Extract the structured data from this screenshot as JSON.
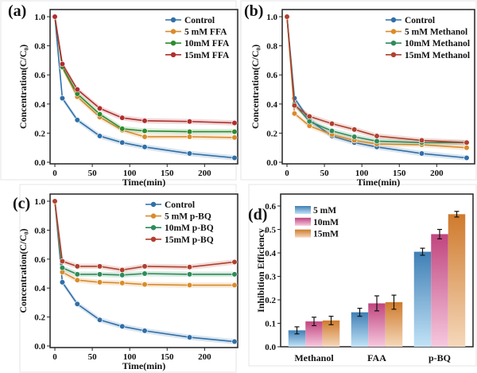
{
  "chart_data": [
    {
      "panel_label": "(a)",
      "type": "line",
      "xlabel": "Time(min)",
      "ylabel": "Concentration(C/C₀)",
      "xlim": [
        0,
        240
      ],
      "ylim": [
        0,
        1.0
      ],
      "xticks": [
        0,
        50,
        100,
        150,
        200
      ],
      "yticks": [
        0.0,
        0.2,
        0.4,
        0.6,
        0.8,
        1.0
      ],
      "legend_position": "top-right",
      "x": [
        0,
        10,
        30,
        60,
        90,
        120,
        180,
        240
      ],
      "series": [
        {
          "name": "Control",
          "color": "#2f6fa8",
          "values": [
            1.0,
            0.44,
            0.29,
            0.18,
            0.135,
            0.105,
            0.06,
            0.03
          ]
        },
        {
          "name": "5  mM FFA",
          "color": "#d98b2b",
          "values": [
            1.0,
            0.65,
            0.45,
            0.31,
            0.22,
            0.175,
            0.175,
            0.17
          ]
        },
        {
          "name": "10mM FFA",
          "color": "#2e8b2e",
          "values": [
            1.0,
            0.655,
            0.47,
            0.33,
            0.23,
            0.215,
            0.21,
            0.21
          ]
        },
        {
          "name": "15mM FFA",
          "color": "#b02e2e",
          "values": [
            1.0,
            0.675,
            0.5,
            0.37,
            0.305,
            0.285,
            0.28,
            0.27
          ]
        }
      ]
    },
    {
      "panel_label": "(b)",
      "type": "line",
      "xlabel": "Time(min)",
      "ylabel": "Concentration(C/C₀)",
      "xlim": [
        0,
        240
      ],
      "ylim": [
        0,
        1.0
      ],
      "xticks": [
        0,
        50,
        100,
        150,
        200
      ],
      "yticks": [
        0.0,
        0.2,
        0.4,
        0.6,
        0.8,
        1.0
      ],
      "legend_position": "top-right",
      "x": [
        0,
        10,
        30,
        60,
        90,
        120,
        180,
        240
      ],
      "series": [
        {
          "name": "Control",
          "color": "#2f6fa8",
          "values": [
            1.0,
            0.44,
            0.29,
            0.18,
            0.135,
            0.105,
            0.06,
            0.03
          ]
        },
        {
          "name": "5  mM Methanol",
          "color": "#d98b2b",
          "values": [
            1.0,
            0.335,
            0.25,
            0.19,
            0.15,
            0.125,
            0.12,
            0.1
          ]
        },
        {
          "name": "10mM Methanol",
          "color": "#2e8b5a",
          "values": [
            1.0,
            0.4,
            0.28,
            0.215,
            0.175,
            0.145,
            0.135,
            0.135
          ]
        },
        {
          "name": "15mM Methanol",
          "color": "#b0402e",
          "values": [
            1.0,
            0.39,
            0.315,
            0.265,
            0.225,
            0.18,
            0.15,
            0.135
          ]
        }
      ]
    },
    {
      "panel_label": "(c)",
      "type": "line",
      "xlabel": "Time(min)",
      "ylabel": "Concentration(C/C₀)",
      "xlim": [
        0,
        240
      ],
      "ylim": [
        0,
        1.0
      ],
      "xticks": [
        0,
        50,
        100,
        150,
        200
      ],
      "yticks": [
        0.0,
        0.2,
        0.4,
        0.6,
        0.8,
        1.0
      ],
      "legend_position": "top-right",
      "x": [
        0,
        10,
        30,
        60,
        90,
        120,
        180,
        240
      ],
      "series": [
        {
          "name": "Control",
          "color": "#2f6fa8",
          "values": [
            1.0,
            0.44,
            0.29,
            0.18,
            0.135,
            0.105,
            0.06,
            0.03
          ]
        },
        {
          "name": "5  mM p-BQ",
          "color": "#d98b2b",
          "values": [
            1.0,
            0.51,
            0.455,
            0.44,
            0.435,
            0.425,
            0.42,
            0.42
          ]
        },
        {
          "name": "10mM p-BQ",
          "color": "#2e8b5a",
          "values": [
            1.0,
            0.54,
            0.495,
            0.495,
            0.49,
            0.5,
            0.495,
            0.495
          ]
        },
        {
          "name": "15mM p-BQ",
          "color": "#b0402e",
          "values": [
            1.0,
            0.585,
            0.55,
            0.55,
            0.525,
            0.55,
            0.545,
            0.58
          ]
        }
      ]
    },
    {
      "panel_label": "(d)",
      "type": "bar",
      "ylabel": "Inhibition Efficiency",
      "ylim": [
        0,
        0.6
      ],
      "yticks": [
        0.0,
        0.1,
        0.2,
        0.3,
        0.4,
        0.5,
        0.6
      ],
      "categories": [
        "Methanol",
        "FAA",
        "p-BQ"
      ],
      "legend_position": "top-left",
      "series": [
        {
          "name": "5 mM",
          "color": "#3f7fb5",
          "light": "#c2e3f7",
          "values": [
            0.07,
            0.147,
            0.405
          ],
          "errors": [
            0.015,
            0.017,
            0.015
          ]
        },
        {
          "name": "10mM",
          "color": "#c0457f",
          "light": "#f6c8de",
          "values": [
            0.108,
            0.185,
            0.48
          ],
          "errors": [
            0.018,
            0.032,
            0.02
          ]
        },
        {
          "name": "15mM",
          "color": "#cf7a2c",
          "light": "#f5d8bb",
          "values": [
            0.112,
            0.19,
            0.565
          ],
          "errors": [
            0.018,
            0.03,
            0.012
          ]
        }
      ]
    }
  ]
}
